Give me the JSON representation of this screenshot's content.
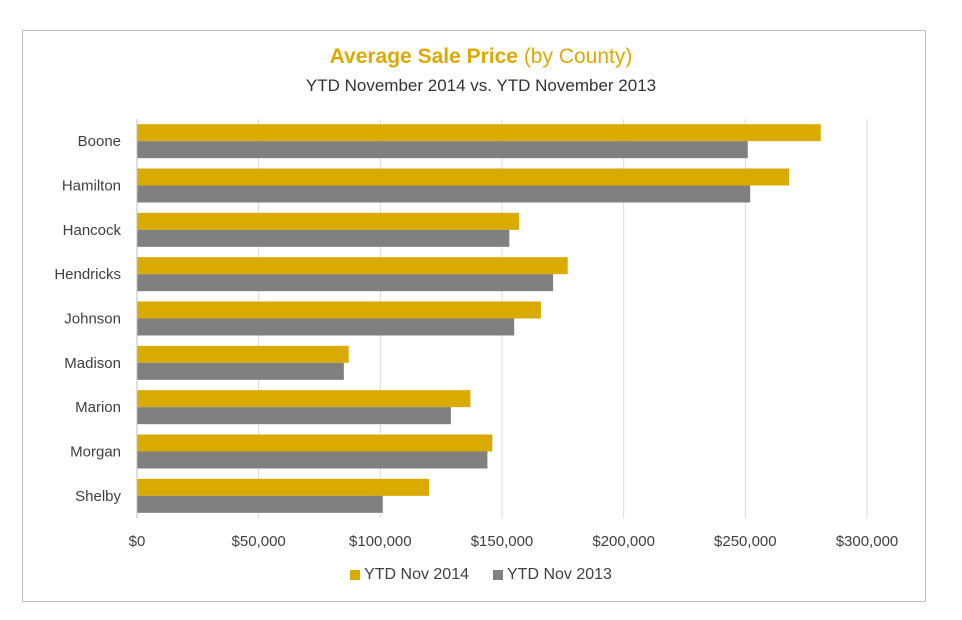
{
  "chart_data": {
    "type": "bar",
    "orientation": "horizontal",
    "title": "Average Sale Price",
    "title_suffix": "(by County)",
    "subtitle": "YTD November 2014 vs. YTD November 2013",
    "categories": [
      "Boone",
      "Hamilton",
      "Hancock",
      "Hendricks",
      "Johnson",
      "Madison",
      "Marion",
      "Morgan",
      "Shelby"
    ],
    "series": [
      {
        "name": "YTD Nov 2014",
        "color": "#d9aa00",
        "values": [
          281000,
          268000,
          157000,
          177000,
          166000,
          87000,
          137000,
          146000,
          120000
        ]
      },
      {
        "name": "YTD Nov 2013",
        "color": "#808080",
        "values": [
          251000,
          252000,
          153000,
          171000,
          155000,
          85000,
          129000,
          144000,
          101000
        ]
      }
    ],
    "xlim": [
      0,
      300000
    ],
    "x_ticks": [
      0,
      50000,
      100000,
      150000,
      200000,
      250000,
      300000
    ],
    "x_tick_labels": [
      "$0",
      "$50,000",
      "$100,000",
      "$150,000",
      "$200,000",
      "$250,000",
      "$300,000"
    ],
    "grid": true,
    "legend_position": "bottom"
  }
}
